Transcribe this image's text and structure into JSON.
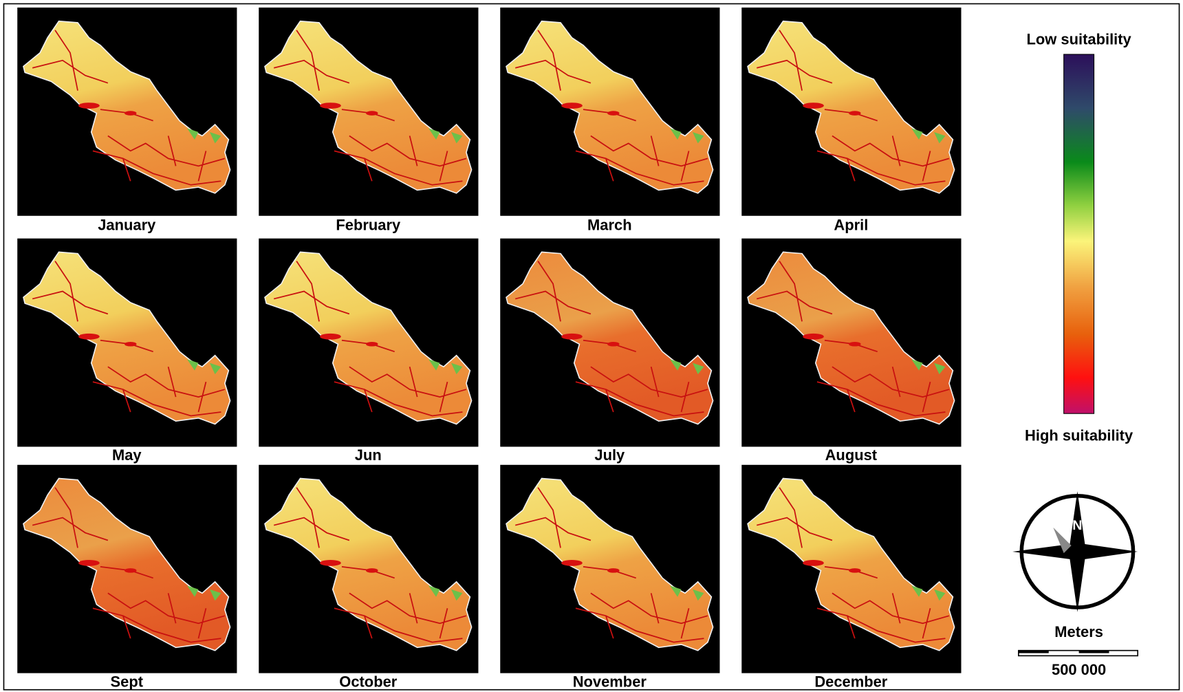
{
  "maps": [
    {
      "label": "January"
    },
    {
      "label": "February"
    },
    {
      "label": "March"
    },
    {
      "label": "April"
    },
    {
      "label": "May"
    },
    {
      "label": "Jun"
    },
    {
      "label": "July"
    },
    {
      "label": "August"
    },
    {
      "label": "Sept"
    },
    {
      "label": "October"
    },
    {
      "label": "November"
    },
    {
      "label": "December"
    }
  ],
  "legend": {
    "low": "Low suitability",
    "high": "High suitability"
  },
  "north_arrow": "N",
  "scale_bar": {
    "unit": "Meters",
    "label": "500 000"
  }
}
